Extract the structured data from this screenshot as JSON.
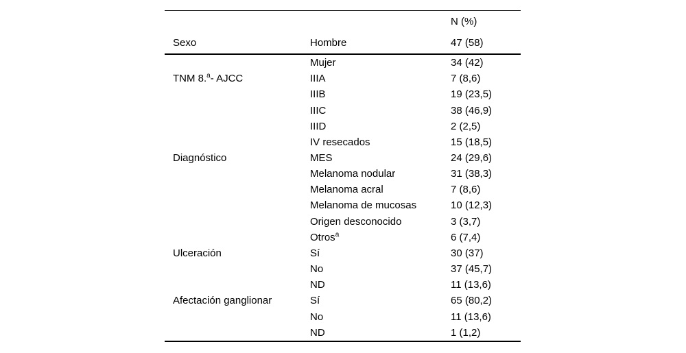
{
  "page": {
    "background": "#ffffff",
    "text_color": "#000000"
  },
  "table": {
    "value_column_header": "N (%)",
    "first_row": {
      "category": "Sexo",
      "item": "Hombre",
      "value": "47 (58)"
    },
    "rows": [
      {
        "category": "",
        "item": "Mujer",
        "value": "34 (42)"
      },
      {
        "category": "TNM 8.",
        "category_sup": "a",
        "category_suffix": "- AJCC",
        "item": "IIIA",
        "value": "7 (8,6)"
      },
      {
        "category": "",
        "item": "IIIB",
        "value": "19 (23,5)"
      },
      {
        "category": "",
        "item": "IIIC",
        "value": "38 (46,9)"
      },
      {
        "category": "",
        "item": "IIID",
        "value": "2 (2,5)"
      },
      {
        "category": "",
        "item": "IV resecados",
        "value": "15 (18,5)"
      },
      {
        "category": "Diagnóstico",
        "item": "MES",
        "value": "24 (29,6)"
      },
      {
        "category": "",
        "item": "Melanoma nodular",
        "value": "31 (38,3)"
      },
      {
        "category": "",
        "item": "Melanoma acral",
        "value": "7 (8,6)"
      },
      {
        "category": "",
        "item": "Melanoma de mucosas",
        "value": "10 (12,3)"
      },
      {
        "category": "",
        "item": "Origen desconocido",
        "value": "3 (3,7)"
      },
      {
        "category": "",
        "item": "Otros",
        "item_sup": "a",
        "value": "6 (7,4)"
      },
      {
        "category": "Ulceración",
        "item": "Sí",
        "value": "30 (37)"
      },
      {
        "category": "",
        "item": "No",
        "value": "37 (45,7)"
      },
      {
        "category": "",
        "item": "ND",
        "value": "11 (13,6)"
      },
      {
        "category": "Afectación ganglionar",
        "item": "Sí",
        "value": "65 (80,2)"
      },
      {
        "category": "",
        "item": "No",
        "value": "11 (13,6)"
      },
      {
        "category": "",
        "item": "ND",
        "value": "1 (1,2)"
      }
    ]
  }
}
